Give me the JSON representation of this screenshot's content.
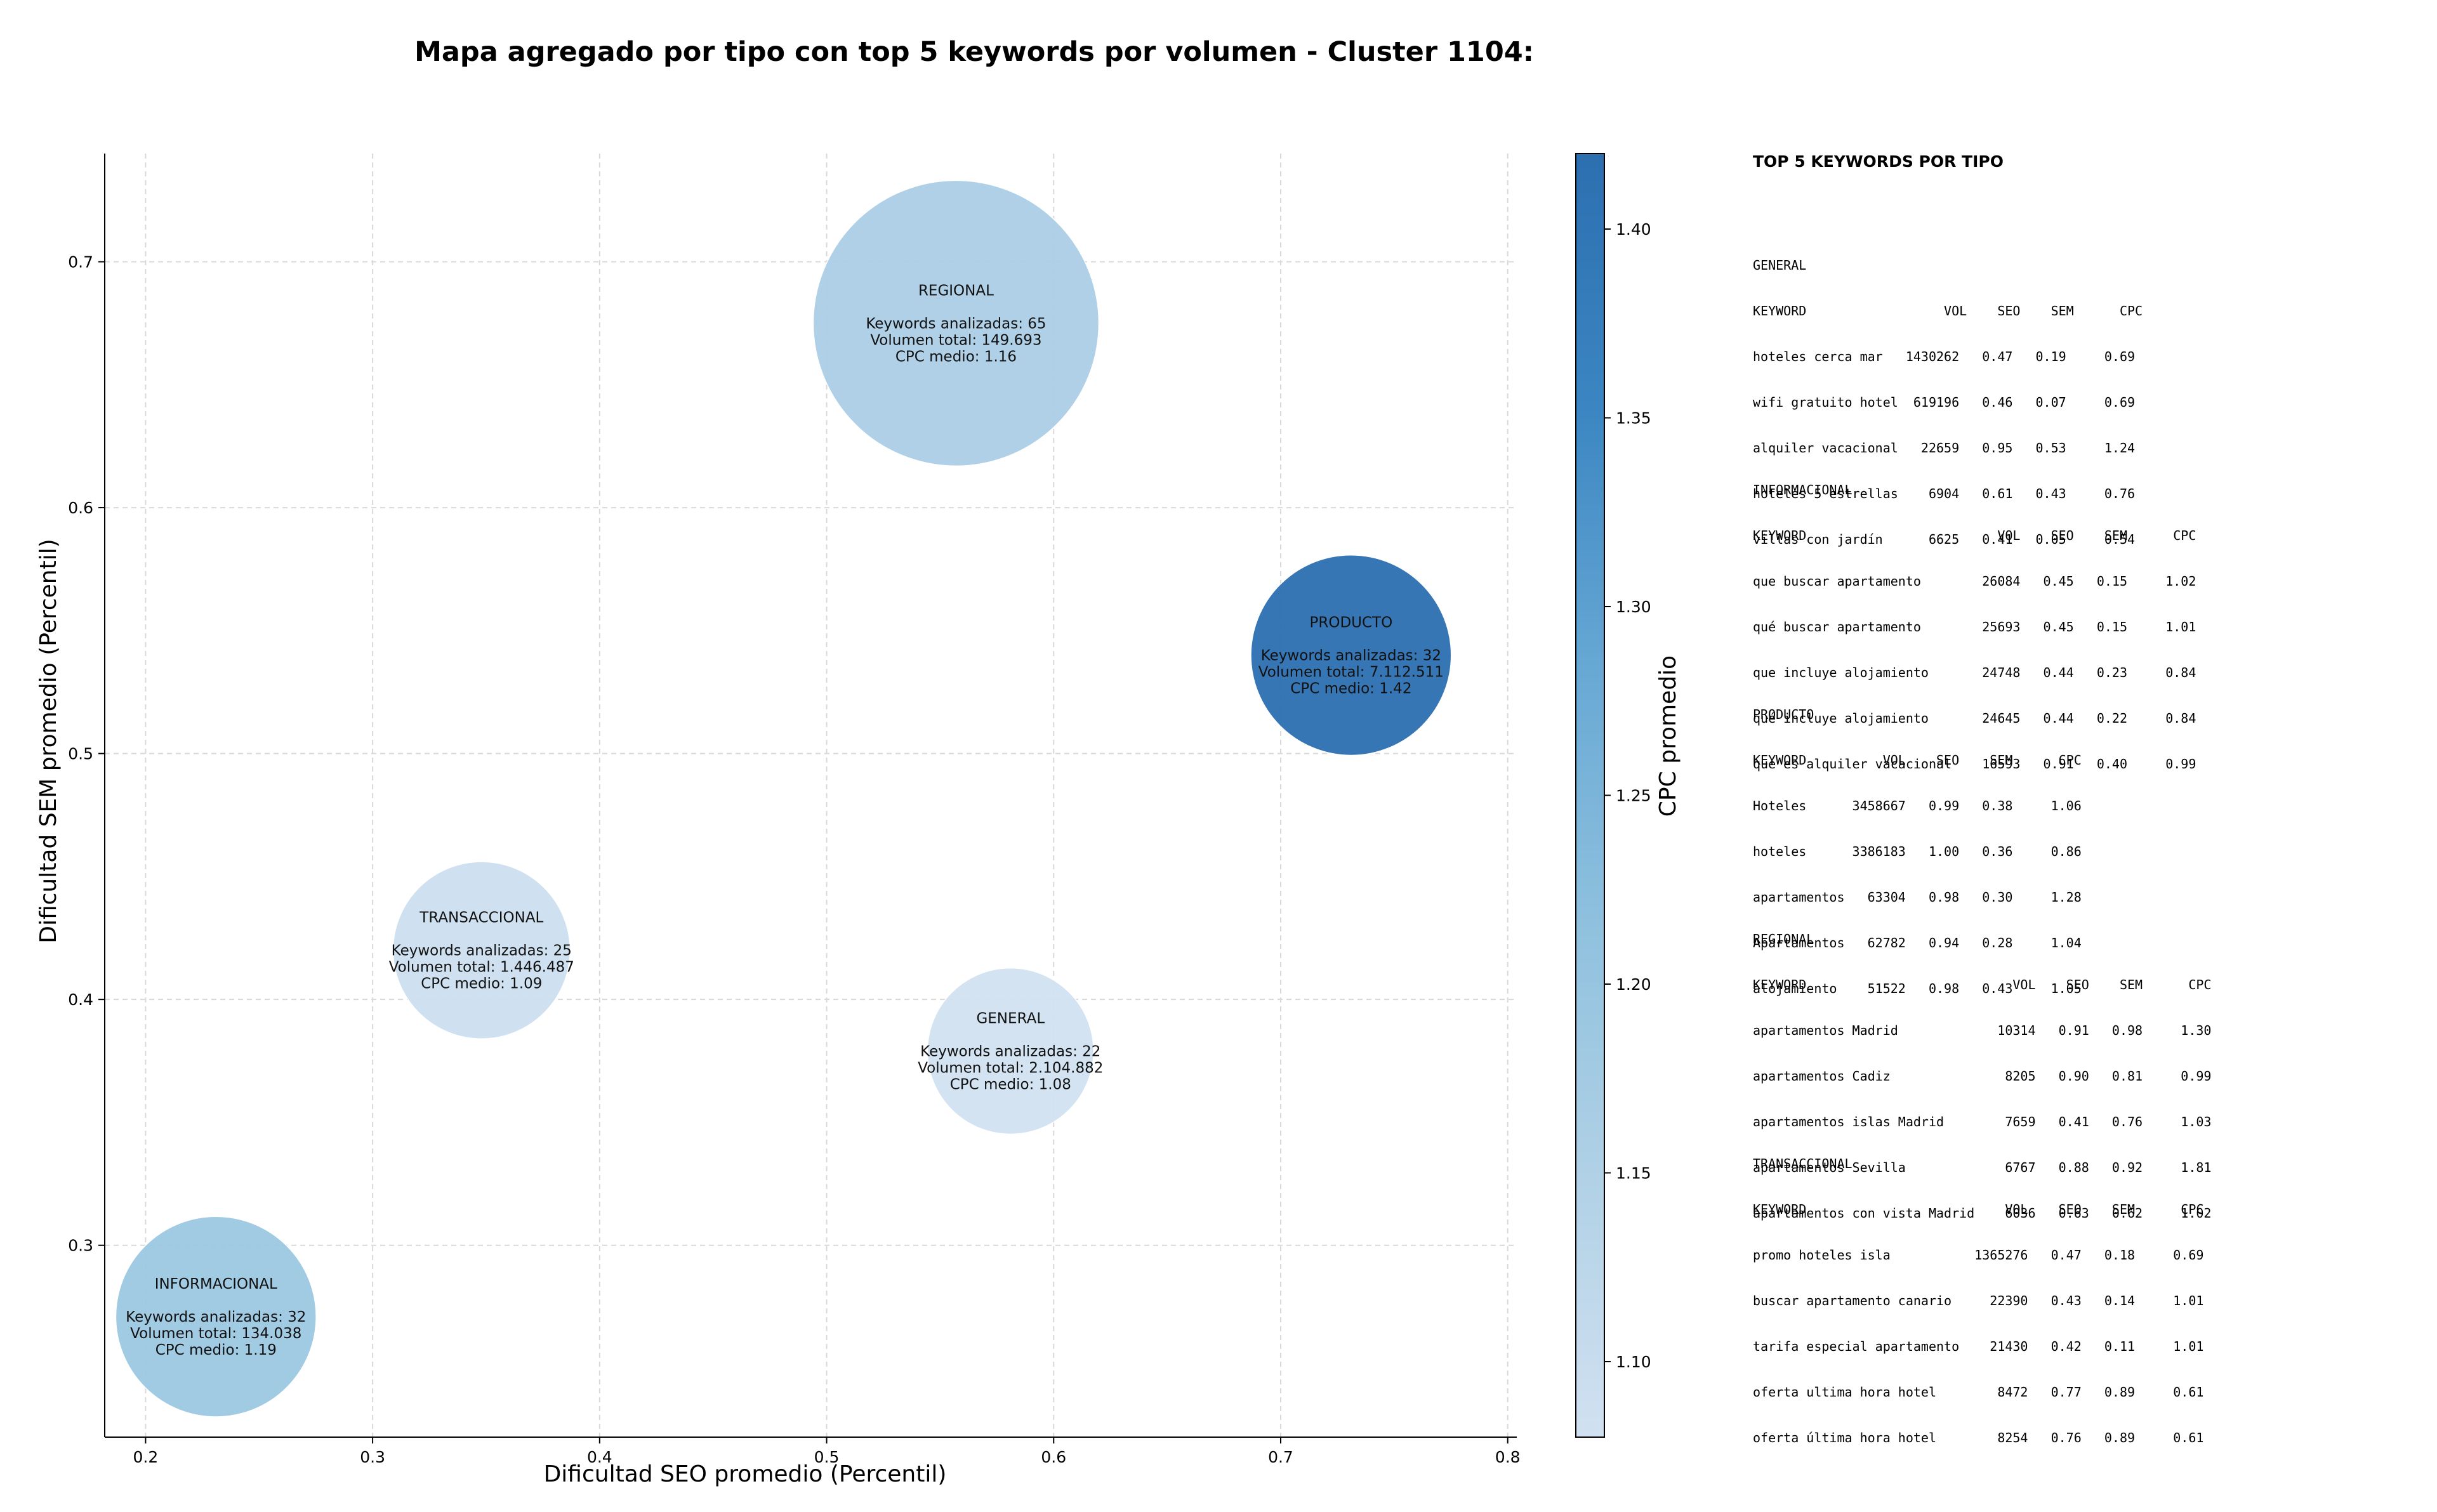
{
  "chart_data": {
    "type": "scatter",
    "title": "Mapa agregado por tipo con top 5 keywords por volumen - Cluster 1104:",
    "xlabel": "Dificultad SEO promedio (Percentil)",
    "ylabel": "Dificultad SEM promedio (Percentil)",
    "xlim": [
      0.182,
      0.804
    ],
    "ylim": [
      0.222,
      0.744
    ],
    "xticks": [
      0.2,
      0.3,
      0.4,
      0.5,
      0.6,
      0.7,
      0.8
    ],
    "xtick_labels": [
      "0.2",
      "0.3",
      "0.4",
      "0.5",
      "0.6",
      "0.7",
      "0.8"
    ],
    "yticks": [
      0.3,
      0.4,
      0.5,
      0.6,
      0.7
    ],
    "ytick_labels": [
      "0.3",
      "0.4",
      "0.5",
      "0.6",
      "0.7"
    ],
    "grid": true,
    "colorbar": {
      "label": "CPC promedio",
      "min": 1.08,
      "max": 1.42,
      "ticks": [
        1.1,
        1.15,
        1.2,
        1.25,
        1.3,
        1.35,
        1.4
      ],
      "tick_labels": [
        "1.10",
        "1.15",
        "1.20",
        "1.25",
        "1.30",
        "1.35",
        "1.40"
      ],
      "colors": [
        "#d1e1f1",
        "#b1d1e6",
        "#8fc1de",
        "#67a8d4",
        "#3b86c2",
        "#2c6fb0"
      ]
    },
    "points": [
      {
        "name": "REGIONAL",
        "x": 0.557,
        "y": 0.675,
        "cpc": 1.16,
        "keywords": 65,
        "volume": 149693,
        "label_lines": [
          "REGIONAL",
          "",
          "Keywords analizadas: 65",
          "Volumen total: 149.693",
          "CPC medio: 1.16"
        ]
      },
      {
        "name": "PRODUCTO",
        "x": 0.731,
        "y": 0.54,
        "cpc": 1.42,
        "keywords": 32,
        "volume": 7112511,
        "label_lines": [
          "PRODUCTO",
          "",
          "Keywords analizadas: 32",
          "Volumen total: 7.112.511",
          "CPC medio: 1.42"
        ]
      },
      {
        "name": "TRANSACCIONAL",
        "x": 0.348,
        "y": 0.42,
        "cpc": 1.09,
        "keywords": 25,
        "volume": 1446487,
        "label_lines": [
          "TRANSACCIONAL",
          "",
          "Keywords analizadas: 25",
          "Volumen total: 1.446.487",
          "CPC medio: 1.09"
        ]
      },
      {
        "name": "GENERAL",
        "x": 0.581,
        "y": 0.379,
        "cpc": 1.08,
        "keywords": 22,
        "volume": 2104882,
        "label_lines": [
          "GENERAL",
          "",
          "Keywords analizadas: 22",
          "Volumen total: 2.104.882",
          "CPC medio: 1.08"
        ]
      },
      {
        "name": "INFORMACIONAL",
        "x": 0.231,
        "y": 0.271,
        "cpc": 1.19,
        "keywords": 32,
        "volume": 134038,
        "label_lines": [
          "INFORMACIONAL",
          "",
          "Keywords analizadas: 32",
          "Volumen total: 134.038",
          "CPC medio: 1.19"
        ]
      }
    ]
  },
  "keyword_panel": {
    "title": "TOP 5 KEYWORDS POR TIPO",
    "blocks": [
      {
        "lines": [
          "GENERAL",
          "KEYWORD                  VOL    SEO    SEM      CPC",
          "hoteles cerca mar   1430262   0.47   0.19     0.69",
          "wifi gratuito hotel  619196   0.46   0.07     0.69",
          "alquiler vacacional   22659   0.95   0.53     1.24",
          "hoteles 5 estrellas    6904   0.61   0.43     0.76",
          "villas con jardín      6625   0.41   0.05     0.54"
        ]
      },
      {
        "lines": [
          "INFORMACIONAL",
          "KEYWORD                         VOL    SEO    SEM      CPC",
          "que buscar apartamento        26084   0.45   0.15     1.02",
          "qué buscar apartamento        25693   0.45   0.15     1.01",
          "que incluye alojamiento       24748   0.44   0.23     0.84",
          "qué incluye alojamiento       24645   0.44   0.22     0.84",
          "qué es alquiler vacacional    16593   0.91   0.40     0.99"
        ]
      },
      {
        "lines": [
          "PRODUCTO",
          "KEYWORD          VOL    SEO    SEM      CPC",
          "Hoteles      3458667   0.99   0.38     1.06",
          "hoteles      3386183   1.00   0.36     0.86",
          "apartamentos   63304   0.98   0.30     1.28",
          "Apartamentos   62782   0.94   0.28     1.04",
          "alojamiento    51522   0.98   0.43     1.05"
        ]
      },
      {
        "lines": [
          "REGIONAL",
          "KEYWORD                           VOL    SEO    SEM      CPC",
          "apartamentos Madrid             10314   0.91   0.98     1.30",
          "apartamentos Cadiz               8205   0.90   0.81     0.99",
          "apartamentos islas Madrid        7659   0.41   0.76     1.03",
          "apartamentos Sevilla             6767   0.88   0.92     1.81",
          "apartamentos con vista Madrid    6036   0.63   0.62     1.02"
        ]
      },
      {
        "lines": [
          "TRANSACCIONAL",
          "KEYWORD                          VOL    SEO    SEM      CPC",
          "promo hoteles isla           1365276   0.47   0.18     0.69",
          "buscar apartamento canario     22390   0.43   0.14     1.01",
          "tarifa especial apartamento    21430   0.42   0.11     1.01",
          "oferta ultima hora hotel        8472   0.77   0.89     0.61",
          "oferta última hora hotel        8254   0.76   0.89     0.61"
        ]
      }
    ]
  }
}
